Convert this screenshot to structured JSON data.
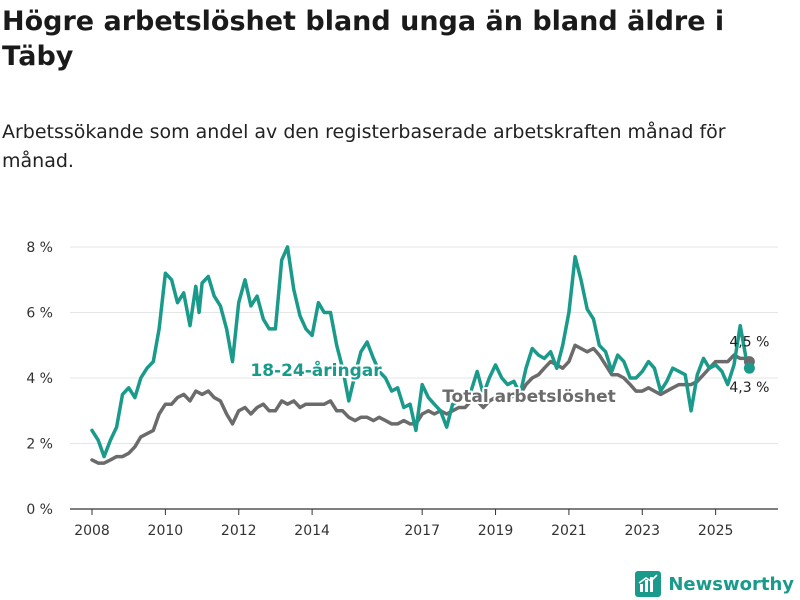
{
  "title": "Högre arbetslöshet bland unga än bland äldre i Täby",
  "subtitle": "Arbetssökande som andel av den registerbaserade arbetskraften månad för månad.",
  "brand": {
    "name": "Newsworthy",
    "icon": "newsworthy-logo-icon"
  },
  "colors": {
    "youth": "#1a9a8a",
    "total": "#6b6b6b",
    "axis": "#333333",
    "grid": "#e6e6e6"
  },
  "chart_data": {
    "type": "line",
    "title": "Högre arbetslöshet bland unga än bland äldre i Täby",
    "xlabel": "",
    "ylabel": "",
    "xlim": [
      2007.4,
      2026.7
    ],
    "ylim": [
      0,
      8
    ],
    "y_ticks": [
      0,
      2,
      4,
      6,
      8
    ],
    "y_tick_labels": [
      "0 %",
      "2 %",
      "4 %",
      "6 %",
      "8 %"
    ],
    "x_ticks": [
      2008,
      2010,
      2012,
      2014,
      2017,
      2019,
      2021,
      2023,
      2025
    ],
    "x_tick_labels": [
      "2008",
      "2010",
      "2012",
      "2014",
      "2017",
      "2019",
      "2021",
      "2023",
      "2025"
    ],
    "grid": "horizontal",
    "series": [
      {
        "name": "18-24-åringar",
        "label": "18-24-åringar",
        "color": "#1a9a8a",
        "end_label": "4,3 %",
        "points": [
          [
            2008.0,
            2.4
          ],
          [
            2008.17,
            2.1
          ],
          [
            2008.33,
            1.6
          ],
          [
            2008.5,
            2.1
          ],
          [
            2008.67,
            2.5
          ],
          [
            2008.83,
            3.5
          ],
          [
            2009.0,
            3.7
          ],
          [
            2009.17,
            3.4
          ],
          [
            2009.33,
            4.0
          ],
          [
            2009.5,
            4.3
          ],
          [
            2009.67,
            4.5
          ],
          [
            2009.83,
            5.5
          ],
          [
            2010.0,
            7.2
          ],
          [
            2010.17,
            7.0
          ],
          [
            2010.33,
            6.3
          ],
          [
            2010.5,
            6.6
          ],
          [
            2010.67,
            5.6
          ],
          [
            2010.83,
            6.8
          ],
          [
            2010.92,
            6.0
          ],
          [
            2011.0,
            6.9
          ],
          [
            2011.17,
            7.1
          ],
          [
            2011.33,
            6.5
          ],
          [
            2011.5,
            6.2
          ],
          [
            2011.67,
            5.5
          ],
          [
            2011.83,
            4.5
          ],
          [
            2012.0,
            6.3
          ],
          [
            2012.17,
            7.0
          ],
          [
            2012.33,
            6.2
          ],
          [
            2012.5,
            6.5
          ],
          [
            2012.67,
            5.8
          ],
          [
            2012.83,
            5.5
          ],
          [
            2013.0,
            5.5
          ],
          [
            2013.17,
            7.6
          ],
          [
            2013.33,
            8.0
          ],
          [
            2013.5,
            6.7
          ],
          [
            2013.67,
            5.9
          ],
          [
            2013.83,
            5.5
          ],
          [
            2014.0,
            5.3
          ],
          [
            2014.17,
            6.3
          ],
          [
            2014.33,
            6.0
          ],
          [
            2014.5,
            6.0
          ],
          [
            2014.67,
            5.0
          ],
          [
            2014.83,
            4.3
          ],
          [
            2015.0,
            3.3
          ],
          [
            2015.17,
            4.1
          ],
          [
            2015.33,
            4.8
          ],
          [
            2015.5,
            5.1
          ],
          [
            2015.67,
            4.6
          ],
          [
            2015.83,
            4.2
          ],
          [
            2016.0,
            4.0
          ],
          [
            2016.17,
            3.6
          ],
          [
            2016.33,
            3.7
          ],
          [
            2016.5,
            3.1
          ],
          [
            2016.67,
            3.2
          ],
          [
            2016.83,
            2.4
          ],
          [
            2017.0,
            3.8
          ],
          [
            2017.17,
            3.4
          ],
          [
            2017.33,
            3.2
          ],
          [
            2017.5,
            3.0
          ],
          [
            2017.67,
            2.5
          ],
          [
            2017.83,
            3.2
          ],
          [
            2018.0,
            3.3
          ],
          [
            2018.17,
            3.6
          ],
          [
            2018.33,
            3.6
          ],
          [
            2018.5,
            4.2
          ],
          [
            2018.67,
            3.5
          ],
          [
            2018.83,
            4.0
          ],
          [
            2019.0,
            4.4
          ],
          [
            2019.17,
            4.0
          ],
          [
            2019.33,
            3.8
          ],
          [
            2019.5,
            3.9
          ],
          [
            2019.67,
            3.5
          ],
          [
            2019.83,
            4.3
          ],
          [
            2020.0,
            4.9
          ],
          [
            2020.17,
            4.7
          ],
          [
            2020.33,
            4.6
          ],
          [
            2020.5,
            4.8
          ],
          [
            2020.67,
            4.3
          ],
          [
            2020.83,
            5.0
          ],
          [
            2021.0,
            6.0
          ],
          [
            2021.17,
            7.7
          ],
          [
            2021.33,
            7.0
          ],
          [
            2021.5,
            6.1
          ],
          [
            2021.67,
            5.8
          ],
          [
            2021.83,
            5.0
          ],
          [
            2022.0,
            4.8
          ],
          [
            2022.17,
            4.2
          ],
          [
            2022.33,
            4.7
          ],
          [
            2022.5,
            4.5
          ],
          [
            2022.67,
            4.0
          ],
          [
            2022.83,
            4.0
          ],
          [
            2023.0,
            4.2
          ],
          [
            2023.17,
            4.5
          ],
          [
            2023.33,
            4.3
          ],
          [
            2023.5,
            3.6
          ],
          [
            2023.67,
            3.9
          ],
          [
            2023.83,
            4.3
          ],
          [
            2024.0,
            4.2
          ],
          [
            2024.17,
            4.1
          ],
          [
            2024.33,
            3.0
          ],
          [
            2024.5,
            4.1
          ],
          [
            2024.67,
            4.6
          ],
          [
            2024.83,
            4.3
          ],
          [
            2025.0,
            4.4
          ],
          [
            2025.17,
            4.2
          ],
          [
            2025.33,
            3.8
          ],
          [
            2025.5,
            4.4
          ],
          [
            2025.67,
            5.6
          ],
          [
            2025.83,
            4.6
          ],
          [
            2025.92,
            4.3
          ]
        ]
      },
      {
        "name": "Total arbetslöshet",
        "label": "Total arbetslöshet",
        "color": "#6b6b6b",
        "end_label": "4,5 %",
        "points": [
          [
            2008.0,
            1.5
          ],
          [
            2008.17,
            1.4
          ],
          [
            2008.33,
            1.4
          ],
          [
            2008.5,
            1.5
          ],
          [
            2008.67,
            1.6
          ],
          [
            2008.83,
            1.6
          ],
          [
            2009.0,
            1.7
          ],
          [
            2009.17,
            1.9
          ],
          [
            2009.33,
            2.2
          ],
          [
            2009.5,
            2.3
          ],
          [
            2009.67,
            2.4
          ],
          [
            2009.83,
            2.9
          ],
          [
            2010.0,
            3.2
          ],
          [
            2010.17,
            3.2
          ],
          [
            2010.33,
            3.4
          ],
          [
            2010.5,
            3.5
          ],
          [
            2010.67,
            3.3
          ],
          [
            2010.83,
            3.6
          ],
          [
            2011.0,
            3.5
          ],
          [
            2011.17,
            3.6
          ],
          [
            2011.33,
            3.4
          ],
          [
            2011.5,
            3.3
          ],
          [
            2011.67,
            2.9
          ],
          [
            2011.83,
            2.6
          ],
          [
            2012.0,
            3.0
          ],
          [
            2012.17,
            3.1
          ],
          [
            2012.33,
            2.9
          ],
          [
            2012.5,
            3.1
          ],
          [
            2012.67,
            3.2
          ],
          [
            2012.83,
            3.0
          ],
          [
            2013.0,
            3.0
          ],
          [
            2013.17,
            3.3
          ],
          [
            2013.33,
            3.2
          ],
          [
            2013.5,
            3.3
          ],
          [
            2013.67,
            3.1
          ],
          [
            2013.83,
            3.2
          ],
          [
            2014.0,
            3.2
          ],
          [
            2014.17,
            3.2
          ],
          [
            2014.33,
            3.2
          ],
          [
            2014.5,
            3.3
          ],
          [
            2014.67,
            3.0
          ],
          [
            2014.83,
            3.0
          ],
          [
            2015.0,
            2.8
          ],
          [
            2015.17,
            2.7
          ],
          [
            2015.33,
            2.8
          ],
          [
            2015.5,
            2.8
          ],
          [
            2015.67,
            2.7
          ],
          [
            2015.83,
            2.8
          ],
          [
            2016.0,
            2.7
          ],
          [
            2016.17,
            2.6
          ],
          [
            2016.33,
            2.6
          ],
          [
            2016.5,
            2.7
          ],
          [
            2016.67,
            2.6
          ],
          [
            2016.83,
            2.6
          ],
          [
            2017.0,
            2.9
          ],
          [
            2017.17,
            3.0
          ],
          [
            2017.33,
            2.9
          ],
          [
            2017.5,
            3.0
          ],
          [
            2017.67,
            2.9
          ],
          [
            2017.83,
            3.0
          ],
          [
            2018.0,
            3.1
          ],
          [
            2018.17,
            3.1
          ],
          [
            2018.33,
            3.3
          ],
          [
            2018.5,
            3.3
          ],
          [
            2018.67,
            3.1
          ],
          [
            2018.83,
            3.3
          ],
          [
            2019.0,
            3.4
          ],
          [
            2019.17,
            3.3
          ],
          [
            2019.33,
            3.3
          ],
          [
            2019.5,
            3.5
          ],
          [
            2019.67,
            3.5
          ],
          [
            2019.83,
            3.8
          ],
          [
            2020.0,
            4.0
          ],
          [
            2020.17,
            4.1
          ],
          [
            2020.33,
            4.3
          ],
          [
            2020.5,
            4.5
          ],
          [
            2020.67,
            4.4
          ],
          [
            2020.83,
            4.3
          ],
          [
            2021.0,
            4.5
          ],
          [
            2021.17,
            5.0
          ],
          [
            2021.33,
            4.9
          ],
          [
            2021.5,
            4.8
          ],
          [
            2021.67,
            4.9
          ],
          [
            2021.83,
            4.7
          ],
          [
            2022.0,
            4.4
          ],
          [
            2022.17,
            4.1
          ],
          [
            2022.33,
            4.1
          ],
          [
            2022.5,
            4.0
          ],
          [
            2022.67,
            3.8
          ],
          [
            2022.83,
            3.6
          ],
          [
            2023.0,
            3.6
          ],
          [
            2023.17,
            3.7
          ],
          [
            2023.33,
            3.6
          ],
          [
            2023.5,
            3.5
          ],
          [
            2023.67,
            3.6
          ],
          [
            2023.83,
            3.7
          ],
          [
            2024.0,
            3.8
          ],
          [
            2024.17,
            3.8
          ],
          [
            2024.33,
            3.8
          ],
          [
            2024.5,
            3.9
          ],
          [
            2024.67,
            4.1
          ],
          [
            2024.83,
            4.3
          ],
          [
            2025.0,
            4.5
          ],
          [
            2025.17,
            4.5
          ],
          [
            2025.33,
            4.5
          ],
          [
            2025.5,
            4.7
          ],
          [
            2025.67,
            4.6
          ],
          [
            2025.83,
            4.6
          ],
          [
            2025.92,
            4.5
          ]
        ]
      }
    ]
  }
}
